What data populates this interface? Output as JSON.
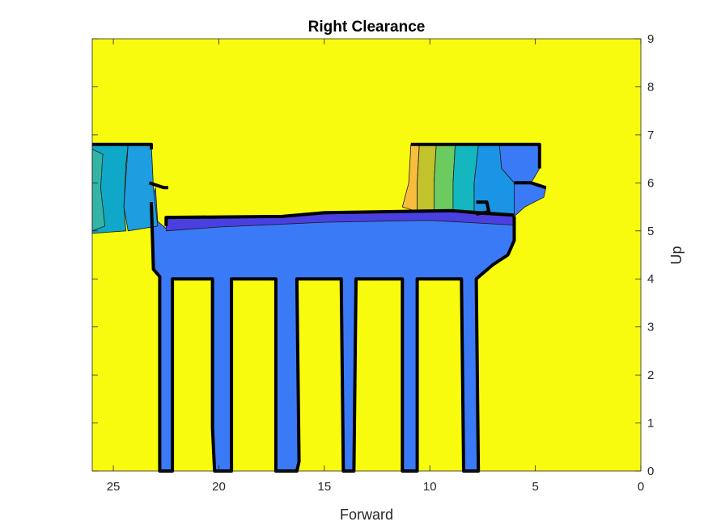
{
  "chart_data": {
    "type": "contour",
    "title": "Right Clearance",
    "xlabel": "Forward",
    "ylabel": "Up",
    "x_axis_reversed": true,
    "y_axis_location": "right",
    "xlim": [
      0,
      26
    ],
    "ylim": [
      0,
      9
    ],
    "xticks": [
      25,
      20,
      15,
      10,
      5,
      0
    ],
    "yticks": [
      0,
      1,
      2,
      3,
      4,
      5,
      6,
      7,
      8,
      9
    ],
    "grid": false,
    "colormap": "parula",
    "background_level_color": "#f9fb0e",
    "regions": [
      {
        "name": "deck",
        "color": "#3a7af6",
        "polygon": [
          [
            23.2,
            5.6
          ],
          [
            23.1,
            4.2
          ],
          [
            22.8,
            4.05
          ],
          [
            22.8,
            0
          ],
          [
            22.2,
            0
          ],
          [
            22.2,
            4.0
          ],
          [
            20.3,
            4.0
          ],
          [
            20.3,
            0.9
          ],
          [
            20.2,
            0
          ],
          [
            19.4,
            0
          ],
          [
            19.4,
            4.0
          ],
          [
            17.3,
            4.0
          ],
          [
            17.3,
            0
          ],
          [
            16.3,
            0
          ],
          [
            16.2,
            0.2
          ],
          [
            16.3,
            4.0
          ],
          [
            14.2,
            4.0
          ],
          [
            14.1,
            0
          ],
          [
            13.6,
            0
          ],
          [
            13.5,
            4.0
          ],
          [
            11.3,
            4.0
          ],
          [
            11.3,
            0
          ],
          [
            10.6,
            0
          ],
          [
            10.6,
            4.0
          ],
          [
            8.5,
            4.0
          ],
          [
            8.4,
            0
          ],
          [
            7.7,
            0
          ],
          [
            7.8,
            4.0
          ],
          [
            7.0,
            4.3
          ],
          [
            6.3,
            4.5
          ],
          [
            6.0,
            4.8
          ],
          [
            6.0,
            5.2
          ],
          [
            10.0,
            5.25
          ],
          [
            15.0,
            5.2
          ],
          [
            20.0,
            5.1
          ],
          [
            22.5,
            5.05
          ],
          [
            22.9,
            5.2
          ],
          [
            23.0,
            5.9
          ]
        ]
      },
      {
        "name": "deck-upper-band",
        "color": "#4a3fe0",
        "polygon": [
          [
            22.5,
            5.0
          ],
          [
            22.5,
            5.25
          ],
          [
            17.0,
            5.28
          ],
          [
            15.0,
            5.35
          ],
          [
            12.0,
            5.38
          ],
          [
            9.0,
            5.4
          ],
          [
            6.0,
            5.3
          ],
          [
            6.0,
            5.12
          ],
          [
            10.0,
            5.22
          ],
          [
            15.0,
            5.18
          ],
          [
            20.0,
            5.08
          ]
        ]
      },
      {
        "name": "left-contour-1",
        "color": "#0fa8c8",
        "polygon": [
          [
            26,
            6.8
          ],
          [
            24.3,
            6.8
          ],
          [
            24.4,
            6.4
          ],
          [
            24.5,
            5.5
          ],
          [
            24.4,
            5.0
          ],
          [
            26,
            4.95
          ]
        ]
      },
      {
        "name": "left-contour-2",
        "color": "#1e9de0",
        "polygon": [
          [
            24.3,
            6.8
          ],
          [
            23.2,
            6.8
          ],
          [
            23.1,
            5.9
          ],
          [
            22.9,
            5.1
          ],
          [
            24.3,
            5.0
          ],
          [
            24.5,
            5.5
          ]
        ]
      },
      {
        "name": "left-contour-0",
        "color": "#33b5a6",
        "polygon": [
          [
            26,
            6.7
          ],
          [
            25.5,
            6.6
          ],
          [
            25.6,
            5.9
          ],
          [
            25.4,
            5.1
          ],
          [
            26,
            5.0
          ]
        ]
      },
      {
        "name": "right-contour-1",
        "color": "#f8bd3c",
        "polygon": [
          [
            11.3,
            5.5
          ],
          [
            11.0,
            6.0
          ],
          [
            10.9,
            6.8
          ],
          [
            10.5,
            6.78
          ],
          [
            10.6,
            6.0
          ],
          [
            10.6,
            5.4
          ]
        ]
      },
      {
        "name": "right-contour-2",
        "color": "#c2c22a",
        "polygon": [
          [
            10.6,
            5.4
          ],
          [
            10.6,
            6.0
          ],
          [
            10.5,
            6.78
          ],
          [
            9.7,
            6.78
          ],
          [
            9.8,
            6.0
          ],
          [
            9.8,
            5.4
          ]
        ]
      },
      {
        "name": "right-contour-3",
        "color": "#6ccb5f",
        "polygon": [
          [
            9.8,
            5.4
          ],
          [
            9.8,
            6.0
          ],
          [
            9.7,
            6.78
          ],
          [
            8.8,
            6.78
          ],
          [
            8.9,
            6.0
          ],
          [
            8.9,
            5.4
          ]
        ]
      },
      {
        "name": "right-contour-4",
        "color": "#14b7bf",
        "polygon": [
          [
            8.9,
            5.4
          ],
          [
            8.9,
            6.0
          ],
          [
            8.8,
            6.78
          ],
          [
            7.7,
            6.78
          ],
          [
            7.9,
            6.0
          ],
          [
            7.9,
            5.35
          ]
        ]
      },
      {
        "name": "right-contour-5",
        "color": "#1a95e6",
        "polygon": [
          [
            7.9,
            5.35
          ],
          [
            7.9,
            6.0
          ],
          [
            7.7,
            6.78
          ],
          [
            6.7,
            6.78
          ],
          [
            6.6,
            6.3
          ],
          [
            6.0,
            6.0
          ],
          [
            6.0,
            5.3
          ]
        ]
      },
      {
        "name": "right-contour-6",
        "color": "#3a7af6",
        "polygon": [
          [
            6.7,
            6.78
          ],
          [
            4.8,
            6.78
          ],
          [
            4.8,
            6.3
          ],
          [
            5.2,
            6.0
          ],
          [
            4.5,
            5.9
          ],
          [
            4.6,
            5.7
          ],
          [
            5.5,
            5.5
          ],
          [
            6.0,
            5.3
          ],
          [
            6.0,
            6.0
          ],
          [
            6.6,
            6.3
          ]
        ]
      }
    ],
    "contour_lines": [
      {
        "name": "deck-outline",
        "points": [
          [
            23.2,
            5.6
          ],
          [
            23.1,
            4.2
          ],
          [
            22.8,
            4.05
          ],
          [
            22.8,
            0
          ],
          [
            22.2,
            0
          ],
          [
            22.2,
            4.0
          ],
          [
            20.3,
            4.0
          ],
          [
            20.3,
            0.9
          ],
          [
            20.2,
            0
          ],
          [
            19.4,
            0
          ],
          [
            19.4,
            4.0
          ],
          [
            17.3,
            4.0
          ],
          [
            17.3,
            0
          ],
          [
            16.3,
            0
          ],
          [
            16.2,
            0.2
          ],
          [
            16.3,
            4.0
          ],
          [
            14.2,
            4.0
          ],
          [
            14.1,
            0
          ],
          [
            13.6,
            0
          ],
          [
            13.5,
            4.0
          ],
          [
            11.3,
            4.0
          ],
          [
            11.3,
            0
          ],
          [
            10.6,
            0
          ],
          [
            10.6,
            4.0
          ],
          [
            8.5,
            4.0
          ],
          [
            8.4,
            0
          ],
          [
            7.7,
            0
          ],
          [
            7.8,
            4.0
          ],
          [
            7.0,
            4.3
          ],
          [
            6.3,
            4.5
          ],
          [
            6.0,
            4.8
          ],
          [
            6.0,
            5.3
          ]
        ]
      },
      {
        "name": "deck-top-outline",
        "points": [
          [
            22.5,
            5.1
          ],
          [
            22.5,
            5.28
          ],
          [
            17.0,
            5.3
          ],
          [
            15.0,
            5.38
          ],
          [
            12.0,
            5.4
          ],
          [
            9.0,
            5.42
          ],
          [
            6.0,
            5.33
          ]
        ]
      },
      {
        "name": "left-top-outline",
        "points": [
          [
            26,
            6.8
          ],
          [
            23.2,
            6.8
          ],
          [
            23.2,
            6.7
          ]
        ]
      },
      {
        "name": "left-step-outline",
        "points": [
          [
            23.3,
            6.0
          ],
          [
            22.6,
            5.9
          ],
          [
            22.4,
            5.9
          ]
        ]
      },
      {
        "name": "right-top-outline",
        "points": [
          [
            10.9,
            6.8
          ],
          [
            4.8,
            6.8
          ],
          [
            4.8,
            6.3
          ]
        ]
      },
      {
        "name": "right-step-outline",
        "points": [
          [
            6.0,
            6.0
          ],
          [
            5.2,
            6.0
          ],
          [
            4.5,
            5.9
          ]
        ]
      },
      {
        "name": "right-notch-outline",
        "points": [
          [
            7.8,
            5.6
          ],
          [
            7.3,
            5.6
          ],
          [
            7.2,
            5.4
          ],
          [
            7.8,
            5.35
          ]
        ]
      }
    ]
  }
}
